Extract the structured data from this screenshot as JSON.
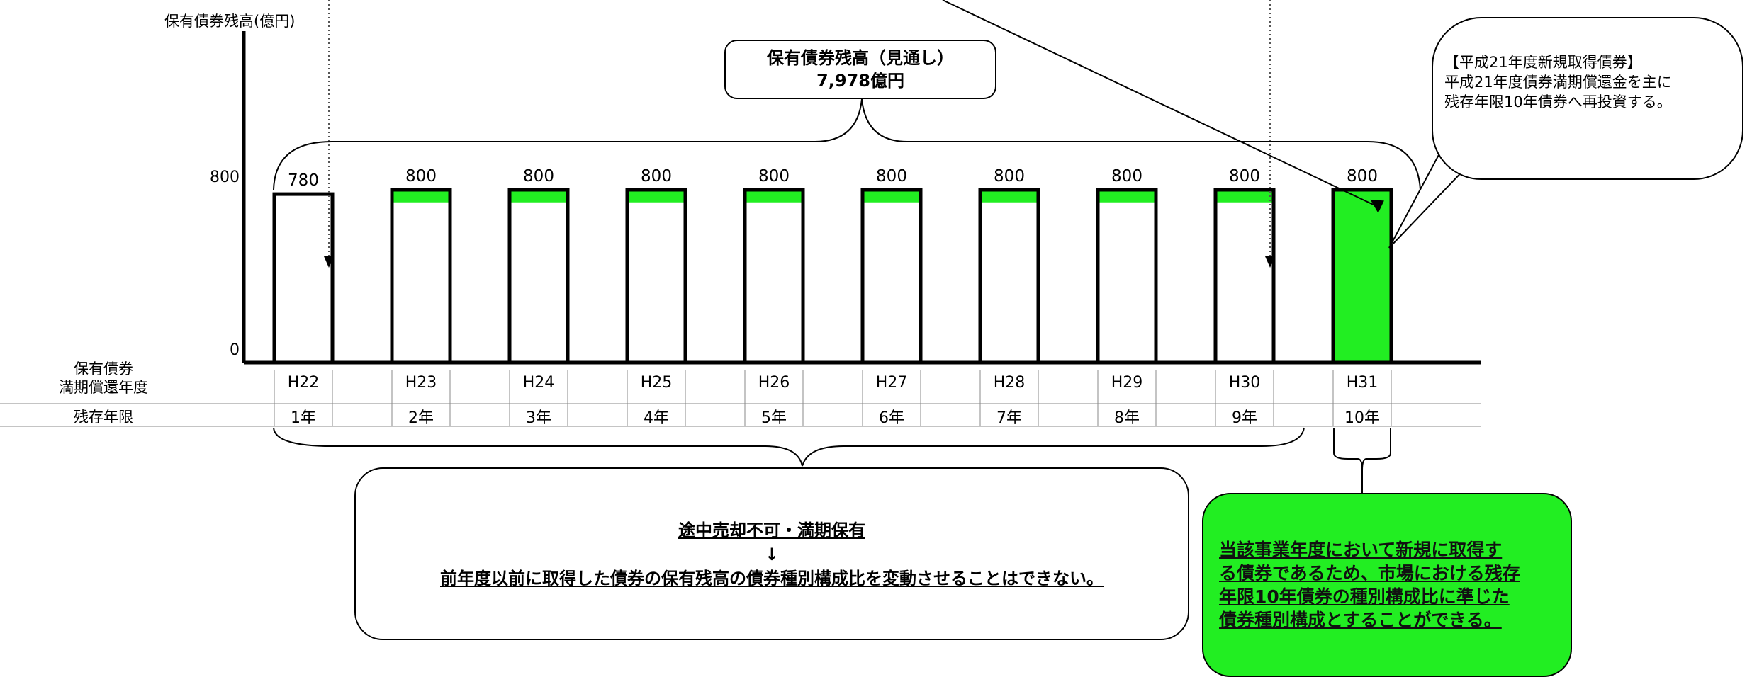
{
  "chart_data": {
    "type": "bar",
    "ylabel": "保有債券残高(億円)",
    "ylim": [
      0,
      800
    ],
    "yticks": [
      "800",
      "0"
    ],
    "categories": [
      "H22",
      "H23",
      "H24",
      "H25",
      "H26",
      "H27",
      "H28",
      "H29",
      "H30",
      "H31"
    ],
    "values": [
      780,
      800,
      800,
      800,
      800,
      800,
      800,
      800,
      800,
      800
    ],
    "value_labels": [
      "780",
      "800",
      "800",
      "800",
      "800",
      "800",
      "800",
      "800",
      "800",
      "800"
    ],
    "top_band_fraction": 0.0625,
    "remaining_years": [
      "1年",
      "2年",
      "3年",
      "4年",
      "5年",
      "6年",
      "7年",
      "8年",
      "9年",
      "10年"
    ],
    "row_headers": {
      "maturity_year": [
        "保有債券",
        "満期償還年度"
      ],
      "remaining_term": "残存年限"
    },
    "colors": {
      "highlight_green": "#22ee22",
      "bar_outline": "#000000",
      "bar_fill": "#ffffff"
    },
    "highlighted_category": "H31"
  },
  "annotations": {
    "total_callout": {
      "line1": "保有債券残高（見通し）",
      "line2": "7,978億円"
    },
    "new_bonds_callout": {
      "line1": "【平成21年度新規取得債券】",
      "line2": "平成21年度債券満期償還金を主に",
      "line3": "残存年限10年債券へ再投資する。"
    },
    "hold_callout": {
      "line1": "途中売却不可・満期保有",
      "arrow": "↓",
      "line2": "前年度以前に取得した債券の保有残高の債券種別構成比を変動させることはできない。"
    },
    "green_callout": {
      "line1": "当該事業年度において新規に取得す",
      "line2": "る債券であるため、市場における残存",
      "line3": "年限10年債券の種別構成比に準じた",
      "line4": "債券種別構成とすることができる。"
    }
  }
}
